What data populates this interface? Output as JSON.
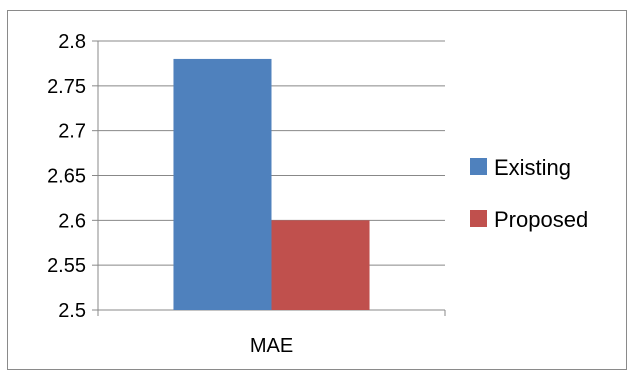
{
  "chart_data": {
    "type": "bar",
    "categories": [
      "MAE"
    ],
    "series": [
      {
        "name": "Existing",
        "values": [
          2.78
        ],
        "color": "#4f81bd"
      },
      {
        "name": "Proposed",
        "values": [
          2.6
        ],
        "color": "#c0504d"
      }
    ],
    "yticks": [
      "2.5",
      "2.55",
      "2.6",
      "2.65",
      "2.7",
      "2.75",
      "2.8"
    ],
    "ylim": [
      2.5,
      2.8
    ],
    "grid": true,
    "legend_position": "right"
  }
}
